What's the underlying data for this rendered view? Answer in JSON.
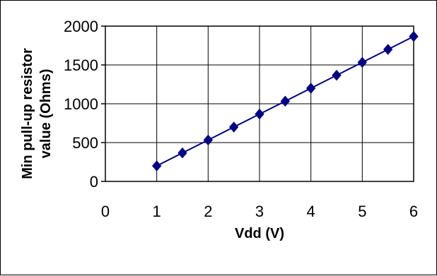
{
  "chart_data": {
    "type": "scatter",
    "title": "",
    "xlabel": "Vdd (V)",
    "ylabel_lines": [
      "Min pull-up resistor",
      "value (Ohms)"
    ],
    "xlim": [
      0,
      6
    ],
    "ylim": [
      0,
      2000
    ],
    "xticks": [
      0,
      1,
      2,
      3,
      4,
      5,
      6
    ],
    "yticks": [
      0,
      500,
      1000,
      1500,
      2000
    ],
    "grid": true,
    "series": [
      {
        "x": [
          1,
          1.5,
          2,
          2.5,
          3,
          3.5,
          4,
          4.5,
          5,
          5.5,
          6
        ],
        "y": [
          200,
          367,
          533,
          700,
          867,
          1033,
          1200,
          1367,
          1533,
          1700,
          1867
        ],
        "color": "#000080",
        "marker": "diamond",
        "line": true
      }
    ]
  }
}
